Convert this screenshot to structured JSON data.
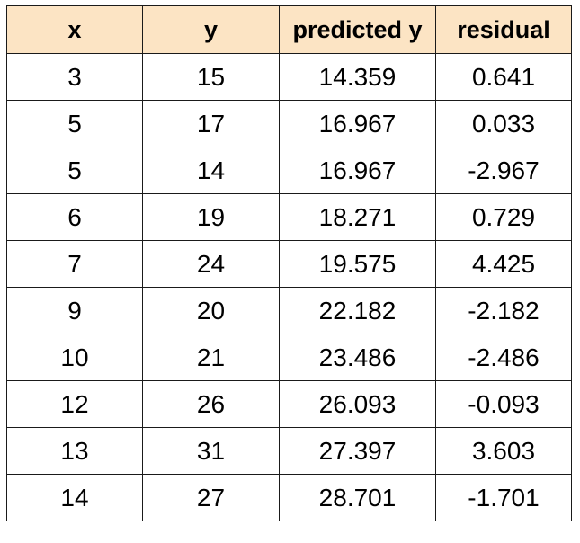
{
  "table": {
    "columns": [
      "x",
      "y",
      "predicted y",
      "residual"
    ],
    "rows": [
      [
        "3",
        "15",
        "14.359",
        "0.641"
      ],
      [
        "5",
        "17",
        "16.967",
        "0.033"
      ],
      [
        "5",
        "14",
        "16.967",
        "-2.967"
      ],
      [
        "6",
        "19",
        "18.271",
        "0.729"
      ],
      [
        "7",
        "24",
        "19.575",
        "4.425"
      ],
      [
        "9",
        "20",
        "22.182",
        "-2.182"
      ],
      [
        "10",
        "21",
        "23.486",
        "-2.486"
      ],
      [
        "12",
        "26",
        "26.093",
        "-0.093"
      ],
      [
        "13",
        "31",
        "27.397",
        "3.603"
      ],
      [
        "14",
        "27",
        "28.701",
        "-1.701"
      ]
    ]
  },
  "colors": {
    "header_background": "#fce4c4",
    "border": "#1a1a1a",
    "cell_background": "#ffffff"
  }
}
